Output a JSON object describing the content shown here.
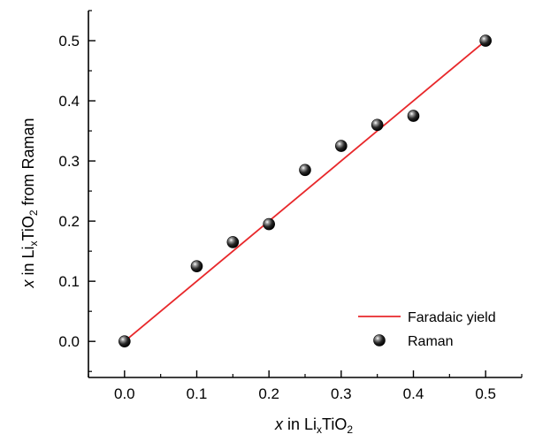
{
  "chart_data": {
    "type": "scatter",
    "title": "",
    "xlabel": {
      "italic": "x",
      "text": " in Li",
      "sub": "x",
      "text2": "TiO",
      "sub2": "2"
    },
    "ylabel": {
      "italic": "x",
      "text": " in Li",
      "sub": "x",
      "text2": "TiO",
      "sub2": "2",
      "text3": " from Raman"
    },
    "xlim": [
      -0.05,
      0.55
    ],
    "ylim": [
      -0.06,
      0.55
    ],
    "x_ticks": [
      0.0,
      0.1,
      0.2,
      0.3,
      0.4,
      0.5
    ],
    "x_tick_labels": [
      "0.0",
      "0.1",
      "0.2",
      "0.3",
      "0.4",
      "0.5"
    ],
    "y_ticks": [
      0.0,
      0.1,
      0.2,
      0.3,
      0.4,
      0.5
    ],
    "y_tick_labels": [
      "0.0",
      "0.1",
      "0.2",
      "0.3",
      "0.4",
      "0.5"
    ],
    "grid": false,
    "legend_position": "bottom-right",
    "series": [
      {
        "name": "Faradaic yield",
        "kind": "line",
        "color": "#e8282b",
        "x": [
          0.0,
          0.5
        ],
        "y": [
          0.0,
          0.5
        ]
      },
      {
        "name": "Raman",
        "kind": "scatter",
        "color": "#000000",
        "marker": "sphere",
        "x": [
          0.0,
          0.1,
          0.15,
          0.2,
          0.25,
          0.3,
          0.35,
          0.4,
          0.5
        ],
        "y": [
          0.0,
          0.125,
          0.165,
          0.195,
          0.285,
          0.325,
          0.36,
          0.375,
          0.5
        ]
      }
    ]
  }
}
